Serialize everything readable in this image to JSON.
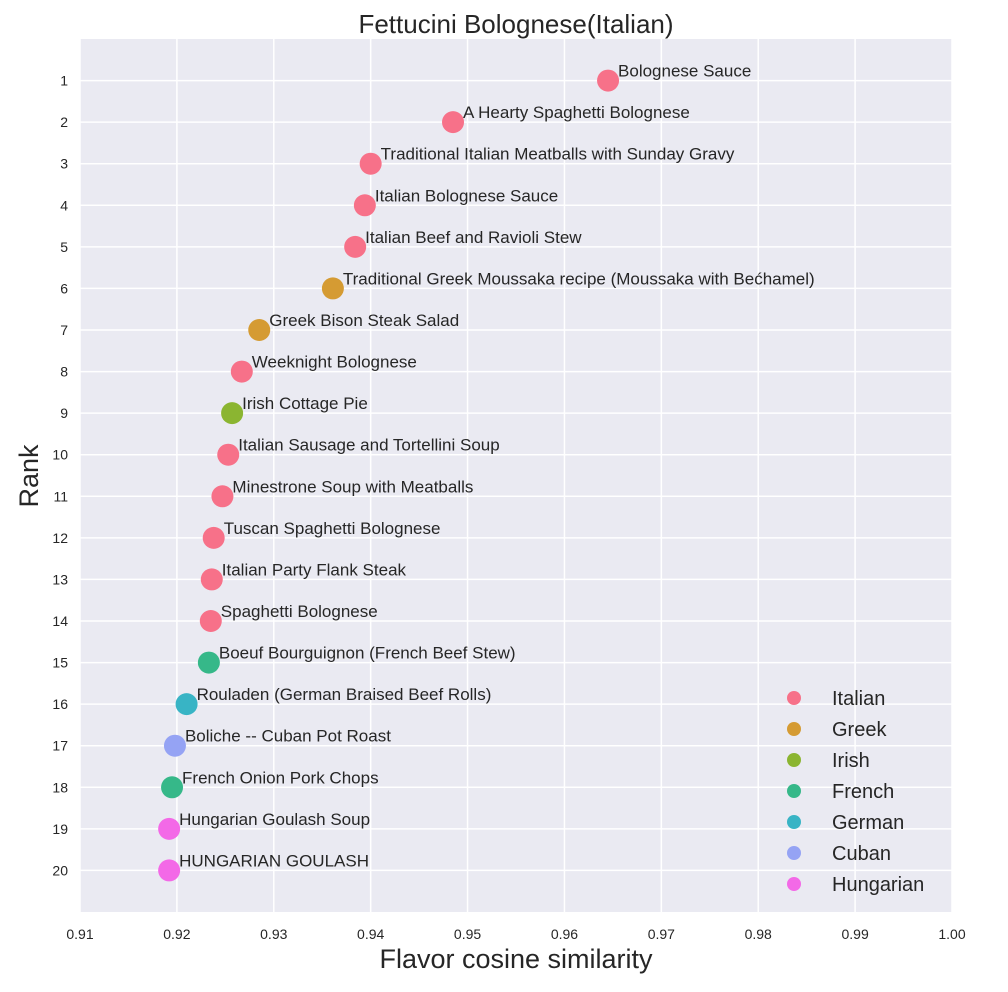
{
  "chart_data": {
    "type": "scatter",
    "title": "Fettucini Bolognese(Italian)",
    "xlabel": "Flavor cosine similarity",
    "ylabel": "Rank",
    "xlim": [
      0.91,
      1.0
    ],
    "ylim": [
      21,
      0
    ],
    "x_ticks": [
      "0.91",
      "0.92",
      "0.93",
      "0.94",
      "0.95",
      "0.96",
      "0.97",
      "0.98",
      "0.99",
      "1.00"
    ],
    "y_ticks": [
      "1",
      "2",
      "3",
      "4",
      "5",
      "6",
      "7",
      "8",
      "9",
      "10",
      "11",
      "12",
      "13",
      "14",
      "15",
      "16",
      "17",
      "18",
      "19",
      "20"
    ],
    "grid": true,
    "legend_position": "bottom-right",
    "series": [
      {
        "name": "Italian",
        "color": "#f77189"
      },
      {
        "name": "Greek",
        "color": "#d59b33"
      },
      {
        "name": "Irish",
        "color": "#8bb531"
      },
      {
        "name": "French",
        "color": "#36b889"
      },
      {
        "name": "German",
        "color": "#38b4c5"
      },
      {
        "name": "Cuban",
        "color": "#95a3f4"
      },
      {
        "name": "Hungarian",
        "color": "#f369e7"
      }
    ],
    "points": [
      {
        "rank": 1,
        "x": 0.9645,
        "label": "Bolognese Sauce",
        "cuisine": "Italian"
      },
      {
        "rank": 2,
        "x": 0.9485,
        "label": "A Hearty Spaghetti Bolognese",
        "cuisine": "Italian"
      },
      {
        "rank": 3,
        "x": 0.94,
        "label": "Traditional Italian Meatballs with Sunday Gravy",
        "cuisine": "Italian"
      },
      {
        "rank": 4,
        "x": 0.9394,
        "label": "Italian Bolognese Sauce",
        "cuisine": "Italian"
      },
      {
        "rank": 5,
        "x": 0.9384,
        "label": "Italian Beef and Ravioli Stew",
        "cuisine": "Italian"
      },
      {
        "rank": 6,
        "x": 0.9361,
        "label": "Traditional Greek Moussaka recipe (Moussaka with Bećhamel)",
        "cuisine": "Greek"
      },
      {
        "rank": 7,
        "x": 0.9285,
        "label": "Greek Bison Steak Salad",
        "cuisine": "Greek"
      },
      {
        "rank": 8,
        "x": 0.9267,
        "label": "Weeknight Bolognese",
        "cuisine": "Italian"
      },
      {
        "rank": 9,
        "x": 0.9257,
        "label": "Irish Cottage Pie",
        "cuisine": "Irish"
      },
      {
        "rank": 10,
        "x": 0.9253,
        "label": "Italian Sausage and Tortellini Soup",
        "cuisine": "Italian"
      },
      {
        "rank": 11,
        "x": 0.9247,
        "label": "Minestrone Soup with Meatballs",
        "cuisine": "Italian"
      },
      {
        "rank": 12,
        "x": 0.9238,
        "label": "Tuscan Spaghetti Bolognese",
        "cuisine": "Italian"
      },
      {
        "rank": 13,
        "x": 0.9236,
        "label": "Italian Party Flank Steak",
        "cuisine": "Italian"
      },
      {
        "rank": 14,
        "x": 0.9235,
        "label": "Spaghetti Bolognese",
        "cuisine": "Italian"
      },
      {
        "rank": 15,
        "x": 0.9233,
        "label": "Boeuf Bourguignon (French Beef Stew)",
        "cuisine": "French"
      },
      {
        "rank": 16,
        "x": 0.921,
        "label": "Rouladen (German Braised Beef Rolls)",
        "cuisine": "German"
      },
      {
        "rank": 17,
        "x": 0.9198,
        "label": "Boliche -- Cuban Pot Roast",
        "cuisine": "Cuban"
      },
      {
        "rank": 18,
        "x": 0.9195,
        "label": "French Onion Pork Chops",
        "cuisine": "French"
      },
      {
        "rank": 19,
        "x": 0.9192,
        "label": "Hungarian Goulash Soup",
        "cuisine": "Hungarian"
      },
      {
        "rank": 20,
        "x": 0.9192,
        "label": "HUNGARIAN GOULASH",
        "cuisine": "Hungarian"
      }
    ]
  }
}
